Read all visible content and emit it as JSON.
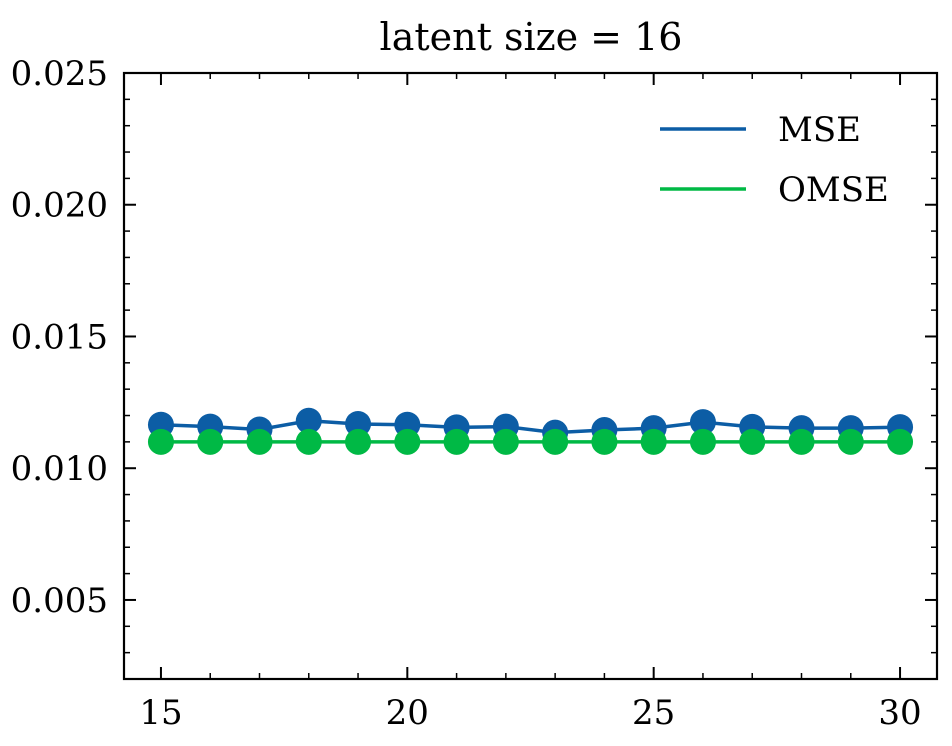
{
  "chart_data": {
    "type": "line",
    "title": "latent size = 16",
    "xlabel": "",
    "ylabel": "",
    "xlim": [
      14.25,
      30.75
    ],
    "ylim": [
      0.002,
      0.025
    ],
    "x_ticks": [
      15,
      20,
      25,
      30
    ],
    "x_tick_labels": [
      "15",
      "20",
      "25",
      "30"
    ],
    "y_ticks": [
      0.005,
      0.01,
      0.015,
      0.02,
      0.025
    ],
    "y_tick_labels": [
      "0.005",
      "0.010",
      "0.015",
      "0.020",
      "0.025"
    ],
    "legend_position": "top-right",
    "grid": false,
    "x": [
      15,
      16,
      17,
      18,
      19,
      20,
      21,
      22,
      23,
      24,
      25,
      26,
      27,
      28,
      29,
      30
    ],
    "series": [
      {
        "name": "MSE",
        "color": "#0C5DA5",
        "values": [
          0.01165,
          0.01158,
          0.01147,
          0.0118,
          0.01168,
          0.01165,
          0.01155,
          0.01158,
          0.01135,
          0.01145,
          0.01152,
          0.01175,
          0.01157,
          0.01152,
          0.01152,
          0.01156
        ]
      },
      {
        "name": "OMSE",
        "color": "#00B945",
        "values": [
          0.011,
          0.011,
          0.011,
          0.011,
          0.011,
          0.011,
          0.011,
          0.011,
          0.011,
          0.011,
          0.011,
          0.011,
          0.011,
          0.011,
          0.011,
          0.011
        ]
      }
    ]
  }
}
